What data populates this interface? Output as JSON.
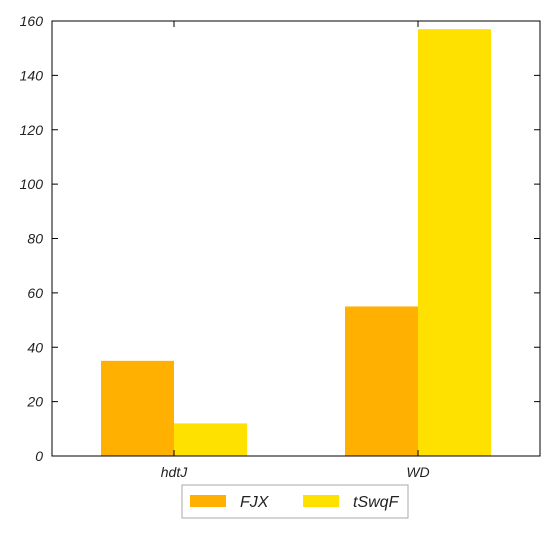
{
  "chart_data": {
    "type": "bar",
    "title": "",
    "xlabel": "",
    "ylabel": "",
    "categories": [
      "hdtJ",
      "WD"
    ],
    "series": [
      {
        "name": "FJX",
        "values": [
          35,
          55
        ],
        "color": "#FFB000"
      },
      {
        "name": "tSwqF",
        "values": [
          12,
          157
        ],
        "color": "#FFE100"
      }
    ],
    "ylim": [
      0,
      160
    ],
    "yticks": [
      0,
      20,
      40,
      60,
      80,
      100,
      120,
      140,
      160
    ],
    "grid": false,
    "legend_position": "bottom"
  }
}
